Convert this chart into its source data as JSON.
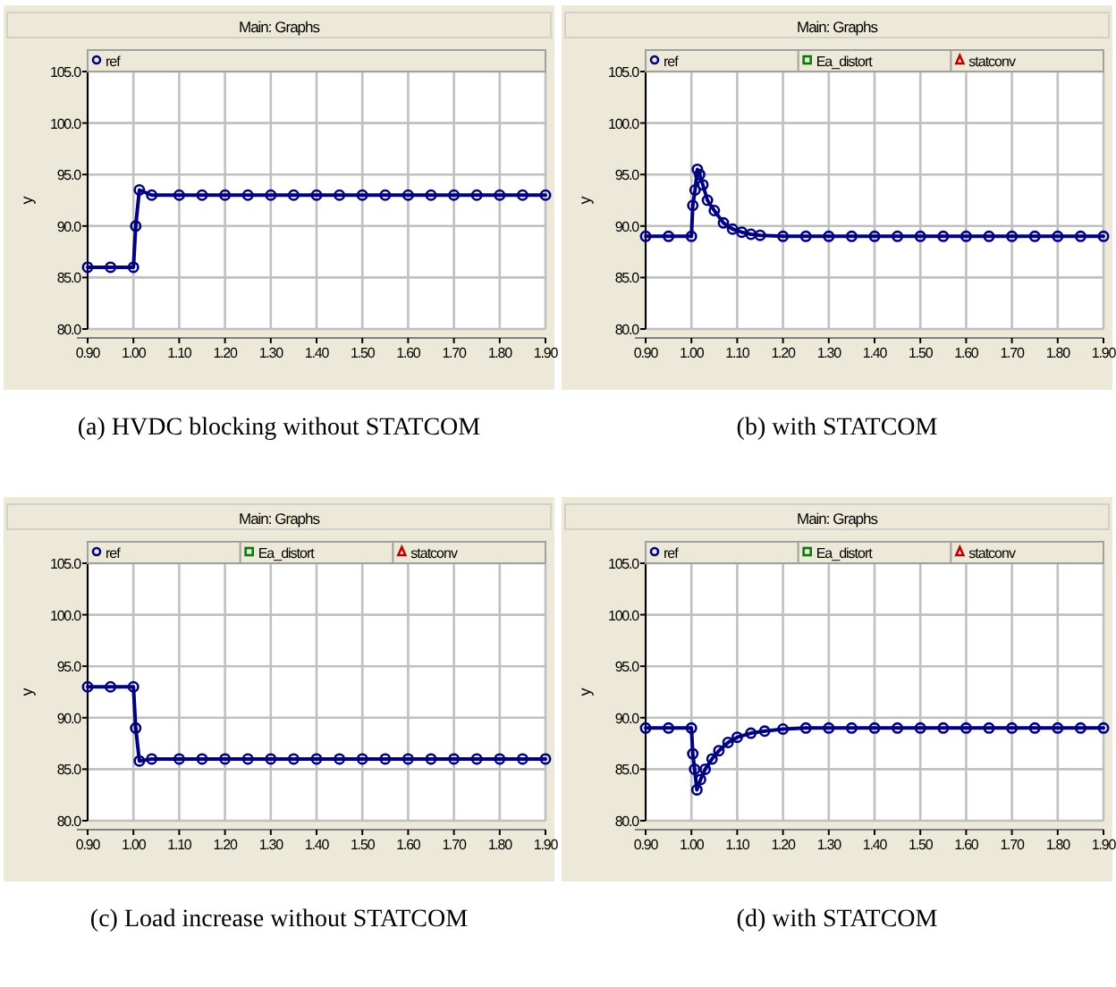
{
  "chart_data": [
    {
      "type": "line",
      "title": "Main: Graphs",
      "ylabel": "y",
      "annotations": [
        "(a) HVDC blocking without STATCOM"
      ],
      "legend": "top",
      "grid": true,
      "marker": "circle",
      "x": [
        0.9,
        0.95,
        1.0,
        1.005,
        1.013,
        1.04,
        1.1,
        1.15,
        1.2,
        1.25,
        1.3,
        1.35,
        1.4,
        1.45,
        1.5,
        1.55,
        1.6,
        1.65,
        1.7,
        1.75,
        1.8,
        1.85,
        1.9
      ],
      "xlim": [
        0.9,
        1.9
      ],
      "xticks": [
        {
          "value": 0.9,
          "label": "0.90"
        },
        {
          "value": 1.0,
          "label": "1.00"
        },
        {
          "value": 1.1,
          "label": "1.10"
        },
        {
          "value": 1.2,
          "label": "1.20"
        },
        {
          "value": 1.3,
          "label": "1.30"
        },
        {
          "value": 1.4,
          "label": "1.40"
        },
        {
          "value": 1.5,
          "label": "1.50"
        },
        {
          "value": 1.6,
          "label": "1.60"
        },
        {
          "value": 1.7,
          "label": "1.70"
        },
        {
          "value": 1.8,
          "label": "1.80"
        },
        {
          "value": 1.9,
          "label": "1.90"
        }
      ],
      "ylim": [
        80,
        105
      ],
      "yticks": [
        {
          "value": 80,
          "label": "80.0"
        },
        {
          "value": 85,
          "label": "85.0"
        },
        {
          "value": 90,
          "label": "90.0"
        },
        {
          "value": 95,
          "label": "95.0"
        },
        {
          "value": 100,
          "label": "100.0"
        },
        {
          "value": 105,
          "label": "105.0"
        }
      ],
      "series": [
        {
          "name": "ref",
          "color": "#000080",
          "values": [
            86,
            86,
            86,
            90,
            93.5,
            93,
            93,
            93,
            93,
            93,
            93,
            93,
            93,
            93,
            93,
            93,
            93,
            93,
            93,
            93,
            93,
            93,
            93
          ]
        }
      ]
    },
    {
      "type": "line",
      "title": "Main: Graphs",
      "ylabel": "y",
      "annotations": [
        "(b) with STATCOM"
      ],
      "legend": "top",
      "grid": true,
      "marker": "circle",
      "x": [
        0.9,
        0.95,
        1.0,
        1.003,
        1.008,
        1.013,
        1.018,
        1.025,
        1.035,
        1.05,
        1.07,
        1.09,
        1.11,
        1.13,
        1.15,
        1.2,
        1.25,
        1.3,
        1.35,
        1.4,
        1.45,
        1.5,
        1.55,
        1.6,
        1.65,
        1.7,
        1.75,
        1.8,
        1.85,
        1.9
      ],
      "xlim": [
        0.9,
        1.9
      ],
      "xticks": [
        {
          "value": 0.9,
          "label": "0.90"
        },
        {
          "value": 1.0,
          "label": "1.00"
        },
        {
          "value": 1.1,
          "label": "1.10"
        },
        {
          "value": 1.2,
          "label": "1.20"
        },
        {
          "value": 1.3,
          "label": "1.30"
        },
        {
          "value": 1.4,
          "label": "1.40"
        },
        {
          "value": 1.5,
          "label": "1.50"
        },
        {
          "value": 1.6,
          "label": "1.60"
        },
        {
          "value": 1.7,
          "label": "1.70"
        },
        {
          "value": 1.8,
          "label": "1.80"
        },
        {
          "value": 1.9,
          "label": "1.90"
        }
      ],
      "ylim": [
        80,
        105
      ],
      "yticks": [
        {
          "value": 80,
          "label": "80.0"
        },
        {
          "value": 85,
          "label": "85.0"
        },
        {
          "value": 90,
          "label": "90.0"
        },
        {
          "value": 95,
          "label": "95.0"
        },
        {
          "value": 100,
          "label": "100.0"
        },
        {
          "value": 105,
          "label": "105.0"
        }
      ],
      "series": [
        {
          "name": "ref",
          "color": "#000080",
          "values": [
            89,
            89,
            89,
            92,
            93.5,
            95.5,
            95,
            94,
            92.5,
            91.5,
            90.3,
            89.7,
            89.4,
            89.2,
            89.1,
            89,
            89,
            89,
            89,
            89,
            89,
            89,
            89,
            89,
            89,
            89,
            89,
            89,
            89,
            89
          ]
        },
        {
          "name": "Ea_distort",
          "color": "#008000",
          "values": [
            null,
            null,
            null,
            null,
            null,
            null,
            null,
            null,
            null,
            null,
            null,
            null,
            null,
            null,
            null,
            null,
            null,
            null,
            null,
            null,
            null,
            null,
            null,
            null,
            null,
            null,
            null,
            null,
            null,
            null
          ],
          "marker": "square"
        },
        {
          "name": "statconv",
          "color": "#c00000",
          "values": [
            null,
            null,
            null,
            null,
            null,
            null,
            null,
            null,
            null,
            null,
            null,
            null,
            null,
            null,
            null,
            null,
            null,
            null,
            null,
            null,
            null,
            null,
            null,
            null,
            null,
            null,
            null,
            null,
            null,
            null
          ],
          "marker": "triangle"
        }
      ]
    },
    {
      "type": "line",
      "title": "Main: Graphs",
      "ylabel": "y",
      "annotations": [
        "(c) Load increase without STATCOM"
      ],
      "legend": "top",
      "grid": true,
      "marker": "circle",
      "x": [
        0.9,
        0.95,
        1.0,
        1.005,
        1.013,
        1.04,
        1.1,
        1.15,
        1.2,
        1.25,
        1.3,
        1.35,
        1.4,
        1.45,
        1.5,
        1.55,
        1.6,
        1.65,
        1.7,
        1.75,
        1.8,
        1.85,
        1.9
      ],
      "xlim": [
        0.9,
        1.9
      ],
      "xticks": [
        {
          "value": 0.9,
          "label": "0.90"
        },
        {
          "value": 1.0,
          "label": "1.00"
        },
        {
          "value": 1.1,
          "label": "1.10"
        },
        {
          "value": 1.2,
          "label": "1.20"
        },
        {
          "value": 1.3,
          "label": "1.30"
        },
        {
          "value": 1.4,
          "label": "1.40"
        },
        {
          "value": 1.5,
          "label": "1.50"
        },
        {
          "value": 1.6,
          "label": "1.60"
        },
        {
          "value": 1.7,
          "label": "1.70"
        },
        {
          "value": 1.8,
          "label": "1.80"
        },
        {
          "value": 1.9,
          "label": "1.90"
        }
      ],
      "ylim": [
        80,
        105
      ],
      "yticks": [
        {
          "value": 80,
          "label": "80.0"
        },
        {
          "value": 85,
          "label": "85.0"
        },
        {
          "value": 90,
          "label": "90.0"
        },
        {
          "value": 95,
          "label": "95.0"
        },
        {
          "value": 100,
          "label": "100.0"
        },
        {
          "value": 105,
          "label": "105.0"
        }
      ],
      "series": [
        {
          "name": "ref",
          "color": "#000080",
          "values": [
            93,
            93,
            93,
            89,
            85.8,
            86,
            86,
            86,
            86,
            86,
            86,
            86,
            86,
            86,
            86,
            86,
            86,
            86,
            86,
            86,
            86,
            86,
            86
          ]
        },
        {
          "name": "Ea_distort",
          "color": "#008000",
          "values": [
            null,
            null,
            null,
            null,
            null,
            null,
            null,
            null,
            null,
            null,
            null,
            null,
            null,
            null,
            null,
            null,
            null,
            null,
            null,
            null,
            null,
            null,
            null
          ],
          "marker": "square"
        },
        {
          "name": "statconv",
          "color": "#c00000",
          "values": [
            null,
            null,
            null,
            null,
            null,
            null,
            null,
            null,
            null,
            null,
            null,
            null,
            null,
            null,
            null,
            null,
            null,
            null,
            null,
            null,
            null,
            null,
            null
          ],
          "marker": "triangle"
        }
      ]
    },
    {
      "type": "line",
      "title": "Main: Graphs",
      "ylabel": "y",
      "annotations": [
        "(d) with STATCOM"
      ],
      "legend": "top",
      "grid": true,
      "marker": "circle",
      "x": [
        0.9,
        0.95,
        1.0,
        1.003,
        1.007,
        1.012,
        1.02,
        1.03,
        1.045,
        1.06,
        1.08,
        1.1,
        1.13,
        1.16,
        1.2,
        1.25,
        1.3,
        1.35,
        1.4,
        1.45,
        1.5,
        1.55,
        1.6,
        1.65,
        1.7,
        1.75,
        1.8,
        1.85,
        1.9
      ],
      "xlim": [
        0.9,
        1.9
      ],
      "xticks": [
        {
          "value": 0.9,
          "label": "0.90"
        },
        {
          "value": 1.0,
          "label": "1.00"
        },
        {
          "value": 1.1,
          "label": "1.10"
        },
        {
          "value": 1.2,
          "label": "1.20"
        },
        {
          "value": 1.3,
          "label": "1.30"
        },
        {
          "value": 1.4,
          "label": "1.40"
        },
        {
          "value": 1.5,
          "label": "1.50"
        },
        {
          "value": 1.6,
          "label": "1.60"
        },
        {
          "value": 1.7,
          "label": "1.70"
        },
        {
          "value": 1.8,
          "label": "1.80"
        },
        {
          "value": 1.9,
          "label": "1.90"
        }
      ],
      "ylim": [
        80,
        105
      ],
      "yticks": [
        {
          "value": 80,
          "label": "80.0"
        },
        {
          "value": 85,
          "label": "85.0"
        },
        {
          "value": 90,
          "label": "90.0"
        },
        {
          "value": 95,
          "label": "95.0"
        },
        {
          "value": 100,
          "label": "100.0"
        },
        {
          "value": 105,
          "label": "105.0"
        }
      ],
      "series": [
        {
          "name": "ref",
          "color": "#000080",
          "values": [
            89,
            89,
            89,
            86.5,
            85,
            83,
            84,
            85,
            86,
            86.8,
            87.6,
            88.1,
            88.5,
            88.7,
            88.9,
            89,
            89,
            89,
            89,
            89,
            89,
            89,
            89,
            89,
            89,
            89,
            89,
            89,
            89
          ]
        },
        {
          "name": "Ea_distort",
          "color": "#008000",
          "values": [
            null,
            null,
            null,
            null,
            null,
            null,
            null,
            null,
            null,
            null,
            null,
            null,
            null,
            null,
            null,
            null,
            null,
            null,
            null,
            null,
            null,
            null,
            null,
            null,
            null,
            null,
            null,
            null,
            null
          ],
          "marker": "square"
        },
        {
          "name": "statconv",
          "color": "#c00000",
          "values": [
            null,
            null,
            null,
            null,
            null,
            null,
            null,
            null,
            null,
            null,
            null,
            null,
            null,
            null,
            null,
            null,
            null,
            null,
            null,
            null,
            null,
            null,
            null,
            null,
            null,
            null,
            null,
            null,
            null
          ],
          "marker": "triangle"
        }
      ]
    }
  ]
}
